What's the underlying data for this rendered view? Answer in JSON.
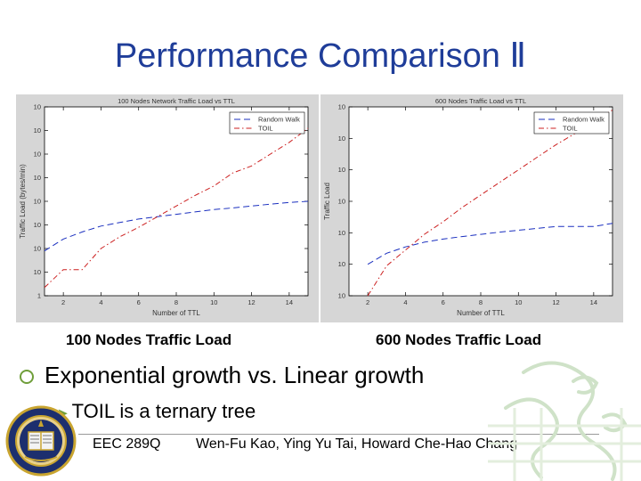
{
  "slide": {
    "title": "Performance Comparison Ⅱ",
    "captions": [
      "100 Nodes Traffic Load",
      "600 Nodes Traffic Load"
    ],
    "bullet_1": "Exponential growth vs. Linear growth",
    "bullet_2": "TOIL is a ternary tree",
    "footer_left": "EEC 289Q",
    "footer_right": "Wen-Fu Kao,  Ying Yu Tai,  Howard Che-Hao Chang",
    "colors": {
      "title": "#1f3d99",
      "bullet": "#6f9e3a",
      "random_walk": "#1a2fbf",
      "toil": "#cc1f1f"
    }
  },
  "chart_data": [
    {
      "type": "line",
      "title": "100 Nodes Network Traffic Load vs TTL",
      "xlabel": "Number of TTL",
      "ylabel": "Traffic Load (bytes/min)",
      "xlim": [
        1,
        15
      ],
      "ylim": [
        0,
        8
      ],
      "y_scale": "log",
      "xticks": [
        2,
        4,
        6,
        8,
        10,
        12,
        14
      ],
      "xtick_labels": [
        "2",
        "4",
        "6",
        "8",
        "10",
        "12",
        "14"
      ],
      "yticks": [
        0,
        1,
        2,
        3,
        4,
        5,
        6,
        7,
        8
      ],
      "ytick_labels": [
        "1",
        "10",
        "10",
        "10",
        "10",
        "10",
        "10",
        "10",
        "10"
      ],
      "legend_position": "top-right",
      "grid": false,
      "series": [
        {
          "name": "Random Walk",
          "color": "#1a2fbf",
          "style": "dashed",
          "x": [
            1,
            2,
            3,
            4,
            5,
            6,
            7,
            8,
            9,
            10,
            11,
            12,
            13,
            14,
            15
          ],
          "y": [
            1.9,
            2.4,
            2.7,
            2.95,
            3.1,
            3.25,
            3.35,
            3.45,
            3.55,
            3.65,
            3.72,
            3.8,
            3.88,
            3.95,
            4.0
          ]
        },
        {
          "name": "TOIL",
          "color": "#cc1f1f",
          "style": "dashdot",
          "x": [
            1,
            2,
            3,
            4,
            5,
            6,
            7,
            8,
            9,
            10,
            11,
            12,
            13,
            14,
            15
          ],
          "y": [
            0.35,
            1.1,
            1.1,
            2.0,
            2.5,
            2.9,
            3.35,
            3.8,
            4.25,
            4.65,
            5.2,
            5.5,
            6.0,
            6.5,
            7.1
          ]
        }
      ]
    },
    {
      "type": "line",
      "title": "600 Nodes Traffic Load vs TTL",
      "xlabel": "Number of TTL",
      "ylabel": "Traffic Load",
      "xlim": [
        1,
        15
      ],
      "ylim": [
        1,
        7
      ],
      "y_scale": "log",
      "xticks": [
        2,
        4,
        6,
        8,
        10,
        12,
        14
      ],
      "xtick_labels": [
        "2",
        "4",
        "6",
        "8",
        "10",
        "12",
        "14"
      ],
      "yticks": [
        1,
        2,
        3,
        4,
        5,
        6,
        7
      ],
      "ytick_labels": [
        "10",
        "10",
        "10",
        "10",
        "10",
        "10",
        "10"
      ],
      "legend_position": "top-right",
      "grid": false,
      "series": [
        {
          "name": "Random Walk",
          "color": "#1a2fbf",
          "style": "dashed",
          "x": [
            2,
            3,
            4,
            5,
            6,
            7,
            8,
            9,
            10,
            11,
            12,
            13,
            14,
            15
          ],
          "y": [
            2.0,
            2.35,
            2.55,
            2.7,
            2.8,
            2.88,
            2.95,
            3.02,
            3.08,
            3.14,
            3.2,
            3.2,
            3.2,
            3.3
          ]
        },
        {
          "name": "TOIL",
          "color": "#cc1f1f",
          "style": "dashdot",
          "x": [
            2,
            3,
            4,
            5,
            6,
            7,
            8,
            9,
            10,
            11,
            12,
            13,
            14,
            15
          ],
          "y": [
            1.0,
            1.95,
            2.45,
            2.95,
            3.35,
            3.8,
            4.2,
            4.6,
            5.0,
            5.4,
            5.8,
            6.15,
            6.55,
            6.9
          ]
        }
      ]
    }
  ]
}
